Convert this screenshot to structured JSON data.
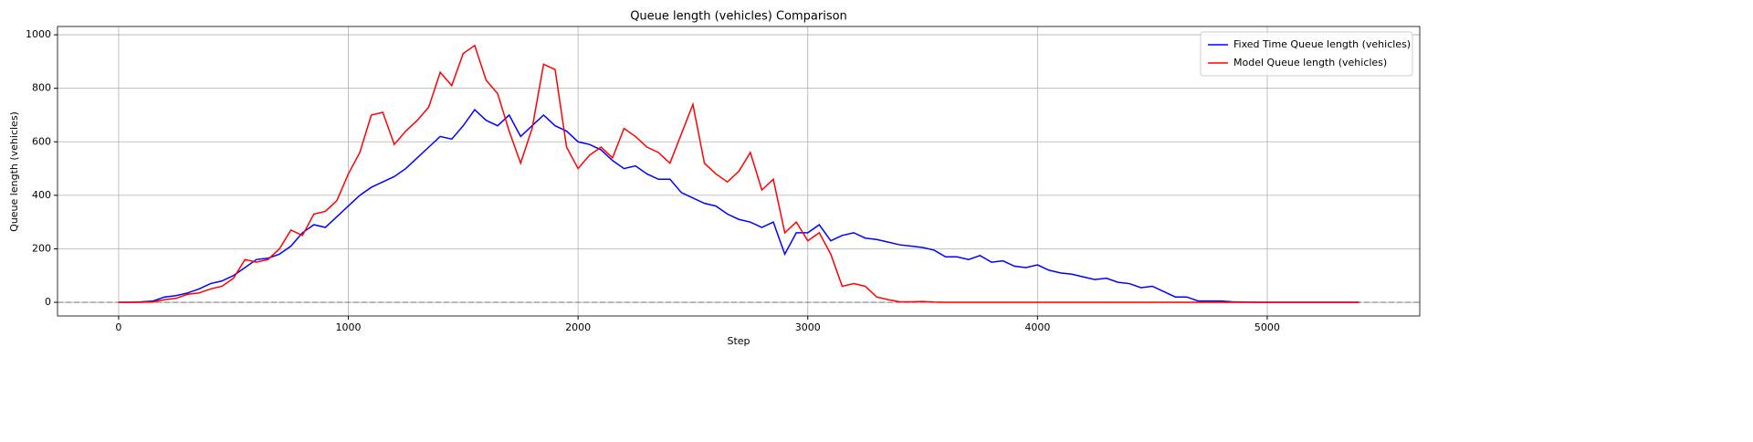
{
  "chart_data": {
    "type": "line",
    "title": "Queue length (vehicles) Comparison",
    "x_label": "Step",
    "y_label": "Queue length (vehicles)",
    "x": [
      0,
      50,
      100,
      150,
      200,
      250,
      300,
      350,
      400,
      450,
      500,
      550,
      600,
      650,
      700,
      750,
      800,
      850,
      900,
      950,
      1000,
      1050,
      1100,
      1150,
      1200,
      1250,
      1300,
      1350,
      1400,
      1450,
      1500,
      1550,
      1600,
      1650,
      1700,
      1750,
      1800,
      1850,
      1900,
      1950,
      2000,
      2050,
      2100,
      2150,
      2200,
      2250,
      2300,
      2350,
      2400,
      2450,
      2500,
      2550,
      2600,
      2650,
      2700,
      2750,
      2800,
      2850,
      2900,
      2950,
      3000,
      3050,
      3100,
      3150,
      3200,
      3250,
      3300,
      3350,
      3400,
      3450,
      3500,
      3550,
      3600,
      3650,
      3700,
      3750,
      3800,
      3850,
      3900,
      3950,
      4000,
      4050,
      4100,
      4150,
      4200,
      4250,
      4300,
      4350,
      4400,
      4450,
      4500,
      4550,
      4600,
      4650,
      4700,
      4750,
      4800,
      4850,
      4900,
      4950,
      5000,
      5050,
      5100,
      5150,
      5200,
      5250,
      5300,
      5350,
      5400
    ],
    "series": [
      {
        "name": "Fixed Time Queue length (vehicles)",
        "color": "#0000ff",
        "values": [
          0,
          0,
          2,
          5,
          20,
          25,
          35,
          50,
          70,
          80,
          100,
          130,
          160,
          165,
          180,
          210,
          260,
          290,
          280,
          320,
          360,
          400,
          430,
          450,
          470,
          500,
          540,
          580,
          620,
          610,
          660,
          720,
          680,
          660,
          700,
          620,
          660,
          700,
          660,
          640,
          600,
          590,
          570,
          530,
          500,
          510,
          480,
          460,
          460,
          410,
          390,
          370,
          360,
          330,
          310,
          300,
          280,
          300,
          180,
          260,
          260,
          290,
          230,
          250,
          260,
          240,
          235,
          225,
          215,
          210,
          205,
          195,
          170,
          170,
          160,
          175,
          150,
          155,
          135,
          130,
          140,
          120,
          110,
          105,
          95,
          85,
          90,
          75,
          70,
          55,
          60,
          40,
          20,
          20,
          5,
          5,
          5,
          2,
          1,
          0,
          0,
          0,
          0,
          0,
          0,
          0,
          0,
          0,
          0
        ]
      },
      {
        "name": "Model Queue length (vehicles)",
        "color": "#ff0000",
        "values": [
          0,
          0,
          0,
          2,
          10,
          15,
          30,
          35,
          50,
          60,
          90,
          160,
          150,
          160,
          200,
          270,
          250,
          330,
          340,
          380,
          480,
          560,
          700,
          710,
          590,
          640,
          680,
          730,
          860,
          810,
          930,
          960,
          830,
          780,
          640,
          520,
          650,
          890,
          870,
          580,
          500,
          550,
          580,
          540,
          650,
          620,
          580,
          560,
          520,
          630,
          740,
          520,
          480,
          450,
          490,
          560,
          420,
          460,
          260,
          300,
          230,
          260,
          180,
          60,
          70,
          60,
          20,
          10,
          2,
          2,
          3,
          1,
          0,
          0,
          0,
          0,
          0,
          0,
          0,
          0,
          0,
          0,
          0,
          0,
          0,
          0,
          0,
          0,
          0,
          0,
          0,
          0,
          0,
          0,
          0,
          0,
          0,
          0,
          0,
          0,
          0,
          0,
          0,
          0,
          0,
          0,
          0,
          0,
          0
        ]
      }
    ],
    "xlim": [
      -266,
      5664
    ],
    "ylim": [
      -51,
      1031
    ],
    "xticks": [
      0,
      1000,
      2000,
      3000,
      4000,
      5000
    ],
    "yticks": [
      0,
      200,
      400,
      600,
      800,
      1000
    ],
    "grid": true,
    "reference_line": 0,
    "legend": "upper right"
  }
}
